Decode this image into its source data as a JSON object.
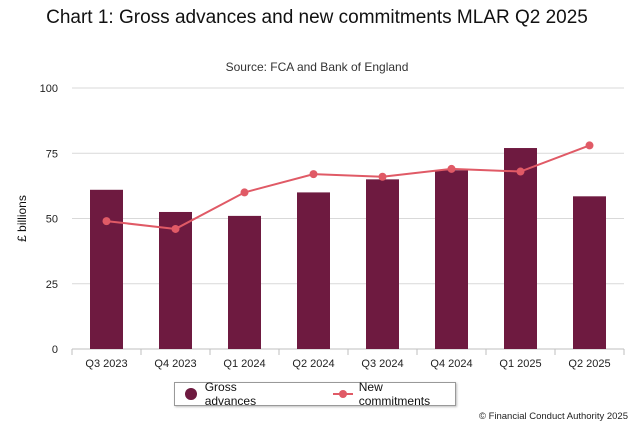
{
  "chart_data": {
    "type": "bar",
    "title": "Chart 1: Gross advances and new commitments MLAR Q2 2025",
    "subtitle": "Source: FCA and Bank of England",
    "xlabel": "",
    "ylabel": "£ billions",
    "ylim": [
      0,
      100
    ],
    "yticks": [
      0,
      25,
      50,
      75,
      100
    ],
    "categories": [
      "Q3 2023",
      "Q4 2023",
      "Q1 2024",
      "Q2 2024",
      "Q3 2024",
      "Q4 2024",
      "Q1 2025",
      "Q2 2025"
    ],
    "series": [
      {
        "name": "Gross advances",
        "kind": "bar",
        "color": "#6e1a40",
        "values": [
          61,
          52.5,
          51,
          60,
          65,
          68.5,
          77,
          58.5
        ]
      },
      {
        "name": "New commitments",
        "kind": "line",
        "color": "#e05a66",
        "values": [
          49,
          46,
          60,
          67,
          66,
          69,
          68,
          78
        ]
      }
    ],
    "legend": "bottom-center",
    "grid": true
  },
  "footer": "© Financial Conduct Authority 2025"
}
